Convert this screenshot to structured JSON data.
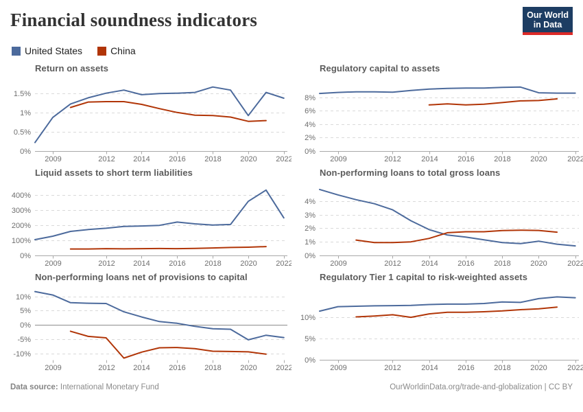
{
  "header": {
    "title": "Financial soundness indicators",
    "logo_line1": "Our World",
    "logo_line2": "in Data"
  },
  "legend": [
    {
      "label": "United States",
      "color": "#4C6A9C"
    },
    {
      "label": "China",
      "color": "#B13507"
    }
  ],
  "colors": {
    "united_states": "#4C6A9C",
    "china": "#B13507",
    "gridline": "#d9d9d9",
    "axis": "#a8a8a8",
    "zero_line": "#8c8c8c",
    "tick_text": "#6e6e6e"
  },
  "chart_data": [
    {
      "type": "line",
      "title": "Return on assets",
      "unit": "%",
      "x_domain": [
        2008,
        2022.2
      ],
      "x_ticks": [
        2009,
        2012,
        2014,
        2016,
        2018,
        2020,
        2022
      ],
      "y_domain": [
        0,
        1.85
      ],
      "y_ticks": [
        0,
        0.5,
        1,
        1.5
      ],
      "baseline": true,
      "zero_line": false,
      "series": [
        {
          "name": "United States",
          "color": "#4C6A9C",
          "years": [
            2008,
            2009,
            2010,
            2011,
            2012,
            2013,
            2014,
            2015,
            2016,
            2017,
            2018,
            2019,
            2020,
            2021,
            2022
          ],
          "values": [
            0.22,
            0.87,
            1.22,
            1.38,
            1.5,
            1.58,
            1.46,
            1.49,
            1.5,
            1.52,
            1.66,
            1.58,
            0.92,
            1.52,
            1.37
          ]
        },
        {
          "name": "China",
          "color": "#B13507",
          "years": [
            2010,
            2011,
            2012,
            2013,
            2014,
            2015,
            2016,
            2017,
            2018,
            2019,
            2020,
            2021
          ],
          "values": [
            1.13,
            1.27,
            1.28,
            1.28,
            1.21,
            1.1,
            1.0,
            0.93,
            0.92,
            0.88,
            0.77,
            0.79
          ]
        }
      ]
    },
    {
      "type": "line",
      "title": "Regulatory capital to assets",
      "unit": "%",
      "x_domain": [
        2008,
        2022.2
      ],
      "x_ticks": [
        2009,
        2012,
        2014,
        2016,
        2018,
        2020,
        2022
      ],
      "y_domain": [
        0,
        10.6
      ],
      "y_ticks": [
        0,
        2,
        4,
        6,
        8
      ],
      "baseline": true,
      "zero_line": false,
      "series": [
        {
          "name": "United States",
          "color": "#4C6A9C",
          "years": [
            2008,
            2009,
            2010,
            2011,
            2012,
            2013,
            2014,
            2015,
            2016,
            2017,
            2018,
            2019,
            2020,
            2021,
            2022
          ],
          "values": [
            8.55,
            8.7,
            8.8,
            8.8,
            8.75,
            9.0,
            9.2,
            9.3,
            9.35,
            9.35,
            9.45,
            9.5,
            8.65,
            8.6,
            8.6
          ]
        },
        {
          "name": "China",
          "color": "#B13507",
          "years": [
            2014,
            2015,
            2016,
            2017,
            2018,
            2019,
            2020,
            2021
          ],
          "values": [
            6.85,
            7.0,
            6.85,
            6.95,
            7.2,
            7.45,
            7.5,
            7.75
          ]
        }
      ]
    },
    {
      "type": "line",
      "title": "Liquid assets to short term liabilities",
      "unit": "%",
      "x_domain": [
        2008,
        2022.2
      ],
      "x_ticks": [
        2009,
        2012,
        2014,
        2016,
        2018,
        2020,
        2022
      ],
      "y_domain": [
        0,
        475
      ],
      "y_ticks": [
        0,
        100,
        200,
        300,
        400
      ],
      "baseline": true,
      "zero_line": false,
      "series": [
        {
          "name": "United States",
          "color": "#4C6A9C",
          "years": [
            2008,
            2009,
            2010,
            2011,
            2012,
            2013,
            2014,
            2015,
            2016,
            2017,
            2018,
            2019,
            2020,
            2021,
            2022
          ],
          "values": [
            105,
            128,
            160,
            172,
            181,
            193,
            196,
            200,
            222,
            210,
            202,
            206,
            360,
            435,
            250
          ]
        },
        {
          "name": "China",
          "color": "#B13507",
          "years": [
            2010,
            2011,
            2012,
            2013,
            2014,
            2015,
            2016,
            2017,
            2018,
            2019,
            2020,
            2021
          ],
          "values": [
            43,
            43,
            45,
            44,
            45,
            46,
            45,
            47,
            50,
            53,
            55,
            59
          ]
        }
      ]
    },
    {
      "type": "line",
      "title": "Non-performing loans to total gross loans",
      "unit": "%",
      "x_domain": [
        2008,
        2022.2
      ],
      "x_ticks": [
        2009,
        2012,
        2014,
        2016,
        2018,
        2020,
        2022
      ],
      "y_domain": [
        0,
        5.25
      ],
      "y_ticks": [
        0,
        1,
        2,
        3,
        4
      ],
      "baseline": true,
      "zero_line": false,
      "series": [
        {
          "name": "United States",
          "color": "#4C6A9C",
          "years": [
            2008,
            2009,
            2010,
            2011,
            2012,
            2013,
            2014,
            2015,
            2016,
            2017,
            2018,
            2019,
            2020,
            2021,
            2022
          ],
          "values": [
            4.85,
            4.45,
            4.1,
            3.8,
            3.35,
            2.55,
            1.9,
            1.5,
            1.35,
            1.15,
            0.95,
            0.87,
            1.05,
            0.83,
            0.7
          ]
        },
        {
          "name": "China",
          "color": "#B13507",
          "years": [
            2010,
            2011,
            2012,
            2013,
            2014,
            2015,
            2016,
            2017,
            2018,
            2019,
            2020,
            2021
          ],
          "values": [
            1.13,
            0.95,
            0.95,
            1.0,
            1.25,
            1.67,
            1.74,
            1.74,
            1.83,
            1.86,
            1.84,
            1.71
          ]
        }
      ]
    },
    {
      "type": "line",
      "title": "Non-performing loans net of provisions to capital",
      "unit": "%",
      "x_domain": [
        2008,
        2022.2
      ],
      "x_ticks": [
        2009,
        2012,
        2014,
        2016,
        2018,
        2020,
        2022
      ],
      "y_domain": [
        -12.2,
        12.8
      ],
      "y_ticks": [
        -10,
        -5,
        0,
        5,
        10
      ],
      "baseline": false,
      "zero_line": true,
      "series": [
        {
          "name": "United States",
          "color": "#4C6A9C",
          "years": [
            2008,
            2009,
            2010,
            2011,
            2012,
            2013,
            2014,
            2015,
            2016,
            2017,
            2018,
            2019,
            2020,
            2021,
            2022
          ],
          "values": [
            11.7,
            10.5,
            7.8,
            7.6,
            7.5,
            4.6,
            2.8,
            1.2,
            0.6,
            -0.5,
            -1.3,
            -1.5,
            -5.2,
            -3.6,
            -4.4
          ]
        },
        {
          "name": "China",
          "color": "#B13507",
          "years": [
            2010,
            2011,
            2012,
            2013,
            2014,
            2015,
            2016,
            2017,
            2018,
            2019,
            2020,
            2021
          ],
          "values": [
            -2.2,
            -4.0,
            -4.5,
            -11.6,
            -9.5,
            -8.0,
            -7.9,
            -8.3,
            -9.2,
            -9.3,
            -9.4,
            -10.2
          ]
        }
      ]
    },
    {
      "type": "line",
      "title": "Regulatory Tier 1 capital to risk-weighted assets",
      "unit": "%",
      "x_domain": [
        2008,
        2022.2
      ],
      "x_ticks": [
        2009,
        2012,
        2014,
        2016,
        2018,
        2020,
        2022
      ],
      "y_domain": [
        0,
        16.8
      ],
      "y_ticks": [
        0,
        5,
        10
      ],
      "baseline": true,
      "zero_line": false,
      "series": [
        {
          "name": "United States",
          "color": "#4C6A9C",
          "years": [
            2008,
            2009,
            2010,
            2011,
            2012,
            2013,
            2014,
            2015,
            2016,
            2017,
            2018,
            2019,
            2020,
            2021,
            2022
          ],
          "values": [
            11.45,
            12.5,
            12.6,
            12.7,
            12.75,
            12.8,
            13.0,
            13.1,
            13.1,
            13.25,
            13.6,
            13.5,
            14.4,
            14.8,
            14.6
          ]
        },
        {
          "name": "China",
          "color": "#B13507",
          "years": [
            2010,
            2011,
            2012,
            2013,
            2014,
            2015,
            2016,
            2017,
            2018,
            2019,
            2020,
            2021
          ],
          "values": [
            10.1,
            10.3,
            10.6,
            10.0,
            10.8,
            11.2,
            11.2,
            11.3,
            11.5,
            11.8,
            12.0,
            12.4
          ]
        }
      ]
    }
  ],
  "footer": {
    "datasource_label": "Data source:",
    "datasource": "International Monetary Fund",
    "credit": "OurWorldinData.org/trade-and-globalization | CC BY"
  }
}
